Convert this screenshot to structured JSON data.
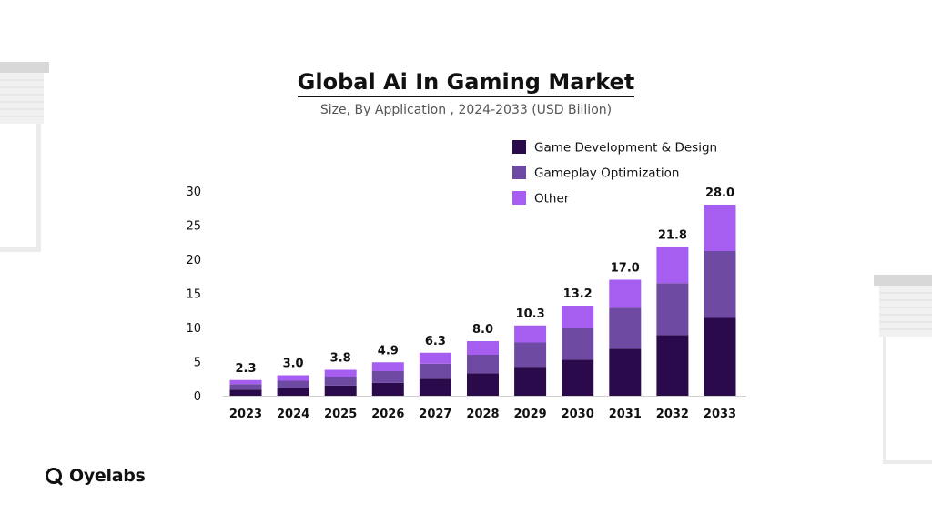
{
  "header": {
    "title": "Global Ai In Gaming Market",
    "subtitle": "Size, By Application , 2024-2033 (USD Billion)"
  },
  "brand": {
    "name": "Oyelabs",
    "logo_icon": "oyelabs-logo-icon"
  },
  "colors": {
    "game_dev": "#2a0a4a",
    "gameplay": "#6e4aa3",
    "other": "#a55ef0"
  },
  "chart_data": {
    "type": "bar",
    "stacked": true,
    "categories": [
      "2023",
      "2024",
      "2025",
      "2026",
      "2027",
      "2028",
      "2029",
      "2030",
      "2031",
      "2032",
      "2033"
    ],
    "totals": [
      "2.3",
      "3.0",
      "3.8",
      "4.9",
      "6.3",
      "8.0",
      "10.3",
      "13.2",
      "17.0",
      "21.8",
      "28.0"
    ],
    "series": [
      {
        "name": "Game Development & Design",
        "values": [
          0.9,
          1.2,
          1.5,
          1.9,
          2.5,
          3.3,
          4.2,
          5.3,
          6.9,
          8.9,
          11.4
        ]
      },
      {
        "name": "Gameplay Optimization",
        "values": [
          0.8,
          1.0,
          1.3,
          1.7,
          2.2,
          2.7,
          3.6,
          4.7,
          6.0,
          7.6,
          9.8
        ]
      },
      {
        "name": "Other",
        "values": [
          0.6,
          0.8,
          1.0,
          1.3,
          1.6,
          2.0,
          2.5,
          3.2,
          4.1,
          5.3,
          6.8
        ]
      }
    ],
    "yticks": [
      "0",
      "5",
      "10",
      "15",
      "20",
      "25",
      "30"
    ],
    "ylim": [
      0,
      30
    ],
    "legend_position": "top-right",
    "grid": false
  }
}
